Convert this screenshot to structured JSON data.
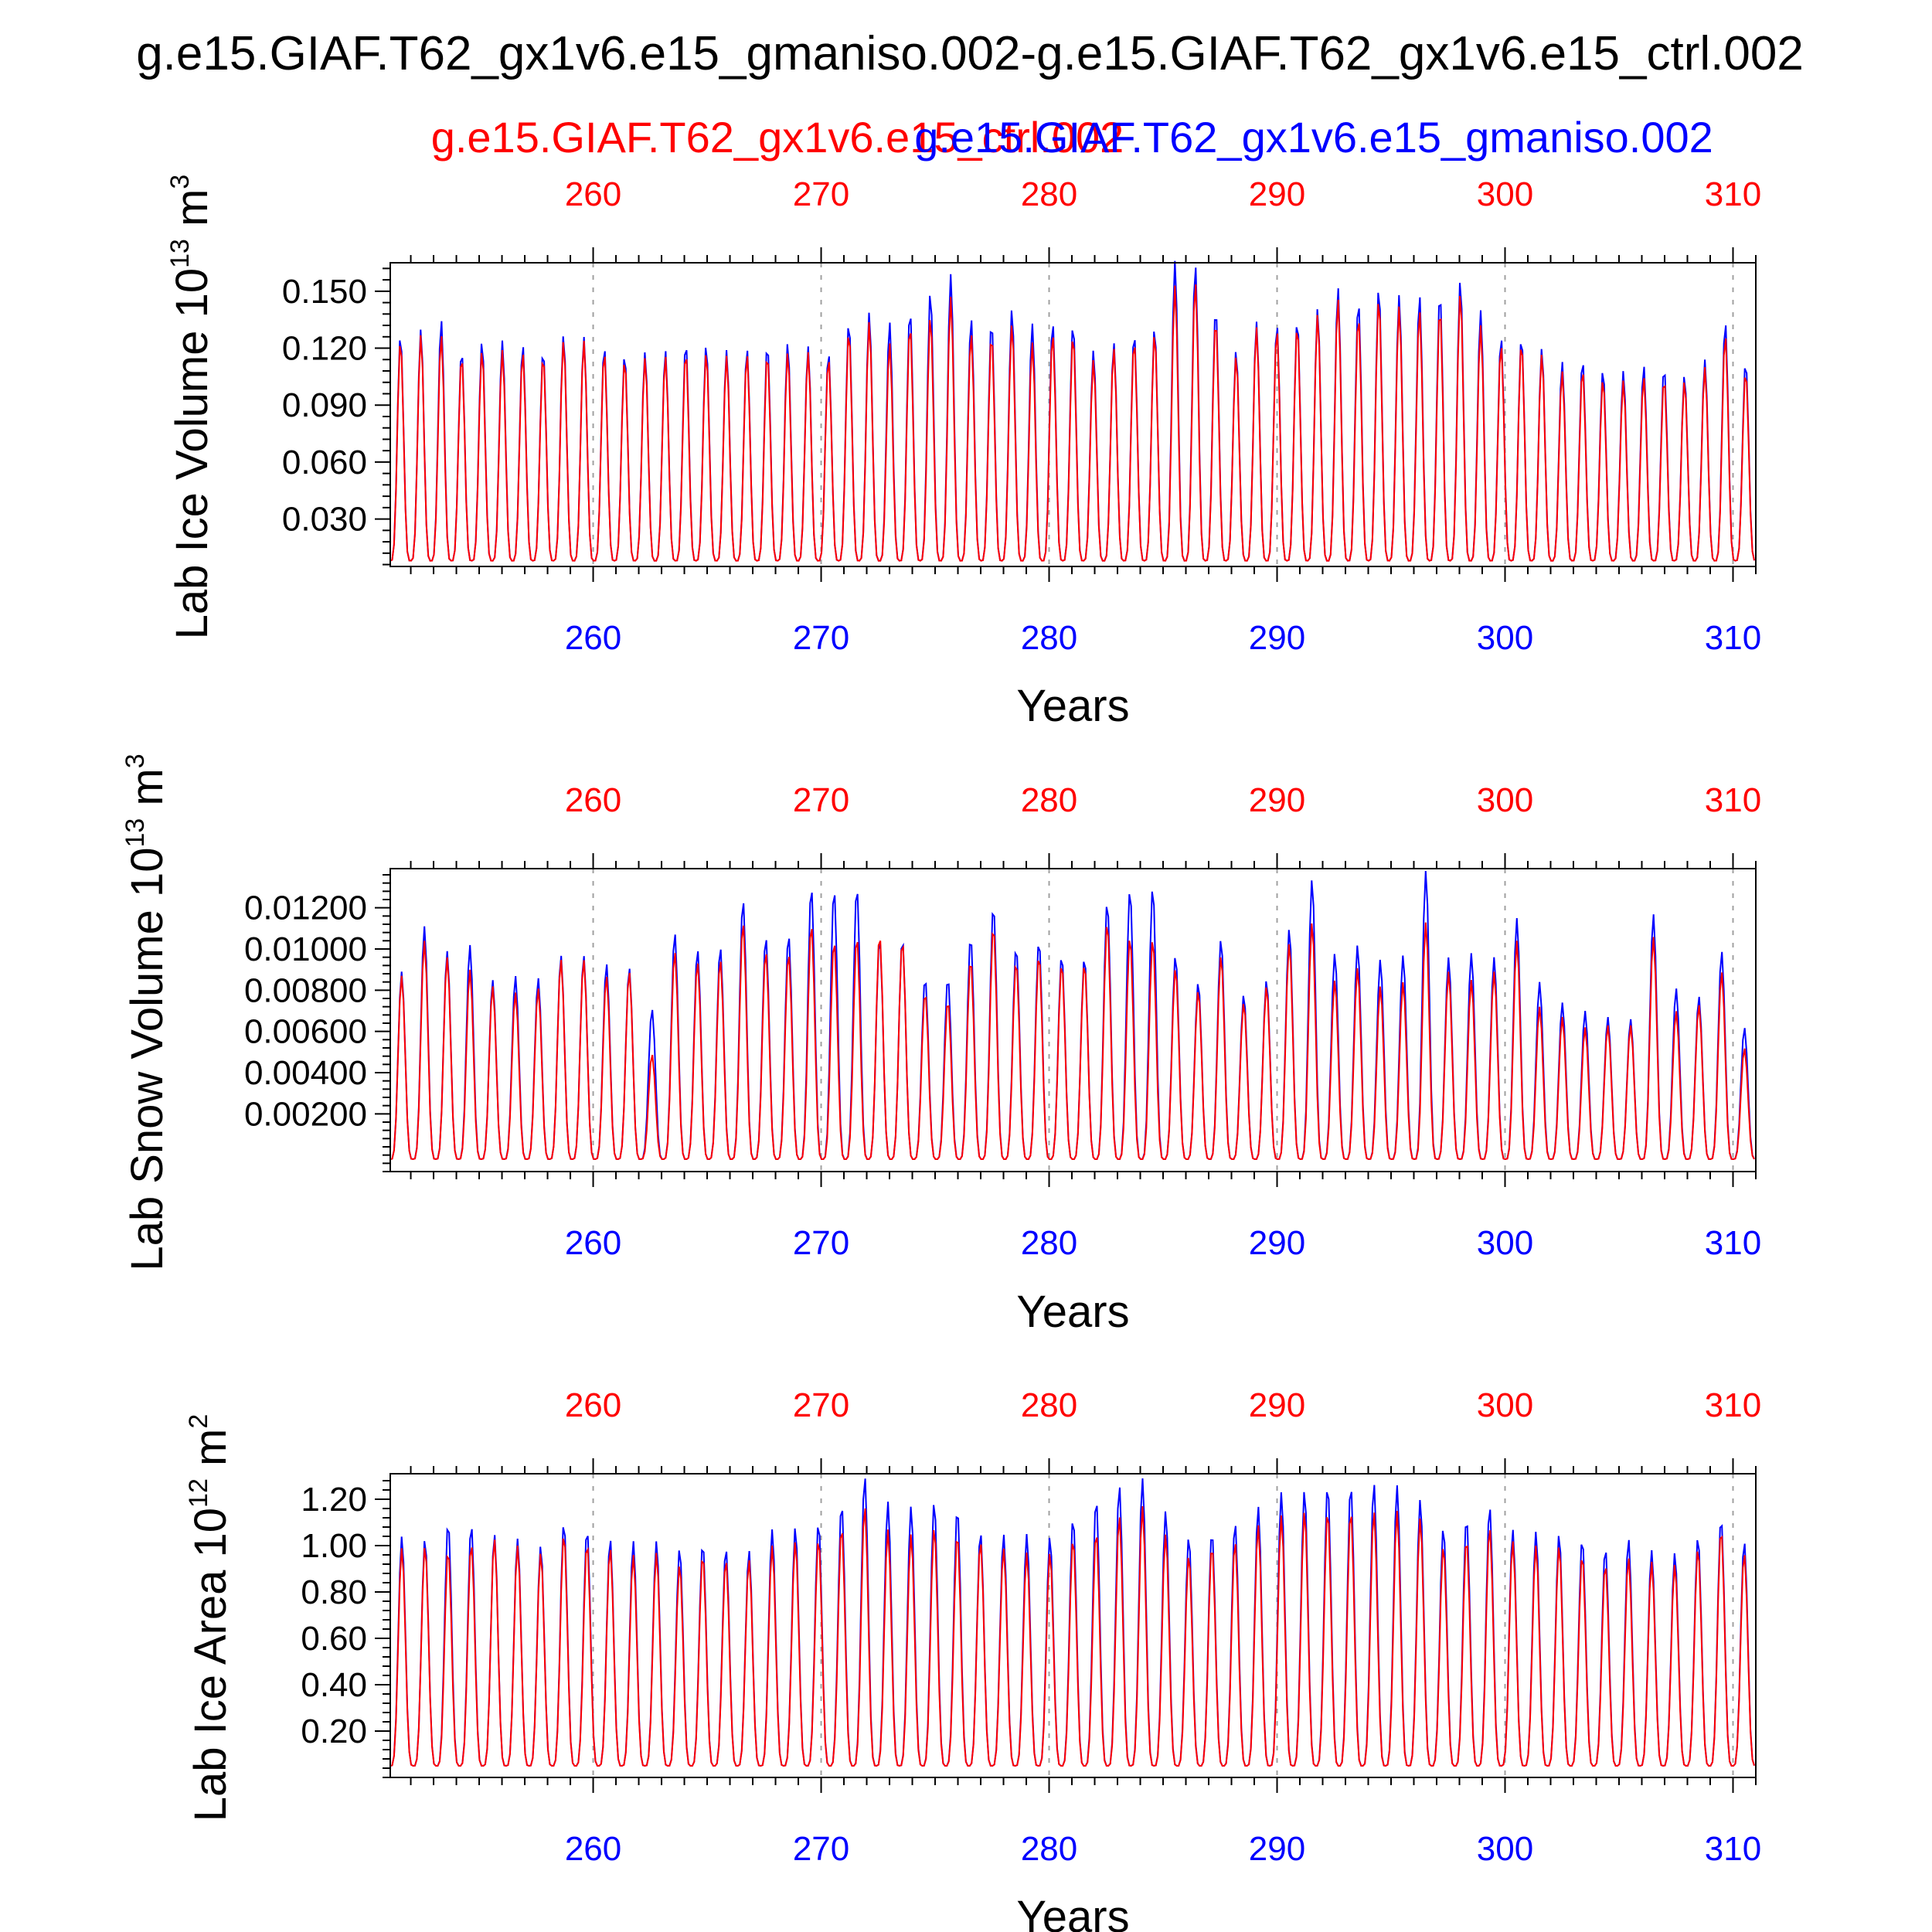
{
  "title": "g.e15.GIAF.T62_gx1v6.e15_gmaniso.002-g.e15.GIAF.T62_gx1v6.e15_ctrl.002",
  "legend": {
    "ctrl_label": "g.e15.GIAF.T62_gx1v6.e15_ctrl.002",
    "gmaniso_label": "g.e15.GIAF.T62_gx1v6.e15_gmaniso.002"
  },
  "colors": {
    "ctrl": "#ff0000",
    "gmaniso": "#0000ff",
    "axis": "#000000",
    "grid": "#a0a0a0"
  },
  "chart_data": [
    {
      "type": "line",
      "ylabel": "Lab Ice Volume",
      "yunit_base": "10",
      "yunit_exp": "13",
      "yunit_tail": "m",
      "yunit_tail_exp": "3",
      "xlabel": "Years",
      "xlim": [
        251.1,
        311.0
      ],
      "ylim": [
        0.005,
        0.165
      ],
      "xticks": [
        260,
        270,
        280,
        290,
        300,
        310
      ],
      "yticks": [
        0.03,
        0.06,
        0.09,
        0.12,
        0.15
      ],
      "ytick_labels": [
        "0.030",
        "0.060",
        "0.090",
        "0.120",
        "0.150"
      ],
      "series_shape": {
        "min": 0.008,
        "ctrl_peaks": [
          0.124,
          0.127,
          0.127,
          0.116,
          0.119,
          0.119,
          0.118,
          0.116,
          0.124,
          0.124,
          0.118,
          0.114,
          0.115,
          0.116,
          0.118,
          0.118,
          0.116,
          0.117,
          0.117,
          0.118,
          0.118,
          0.115,
          0.129,
          0.134,
          0.123,
          0.132,
          0.137,
          0.147,
          0.128,
          0.127,
          0.133,
          0.123,
          0.128,
          0.127,
          0.114,
          0.12,
          0.124,
          0.128,
          0.153,
          0.155,
          0.135,
          0.116,
          0.131,
          0.13,
          0.132,
          0.138,
          0.146,
          0.137,
          0.146,
          0.142,
          0.14,
          0.141,
          0.149,
          0.132,
          0.122,
          0.123,
          0.117,
          0.108,
          0.109,
          0.104,
          0.103,
          0.105,
          0.104,
          0.103,
          0.11,
          0.127,
          0.108
        ],
        "gmaniso_peaks": [
          0.127,
          0.13,
          0.135,
          0.119,
          0.124,
          0.124,
          0.122,
          0.119,
          0.127,
          0.126,
          0.121,
          0.117,
          0.118,
          0.119,
          0.123,
          0.122,
          0.119,
          0.12,
          0.122,
          0.123,
          0.121,
          0.118,
          0.134,
          0.139,
          0.134,
          0.14,
          0.15,
          0.159,
          0.136,
          0.134,
          0.141,
          0.133,
          0.134,
          0.133,
          0.119,
          0.123,
          0.128,
          0.131,
          0.166,
          0.164,
          0.141,
          0.119,
          0.134,
          0.133,
          0.135,
          0.141,
          0.152,
          0.145,
          0.152,
          0.148,
          0.148,
          0.149,
          0.156,
          0.14,
          0.126,
          0.126,
          0.12,
          0.113,
          0.114,
          0.109,
          0.108,
          0.111,
          0.11,
          0.106,
          0.114,
          0.134,
          0.113
        ]
      }
    },
    {
      "type": "line",
      "ylabel": "Lab Snow Volume",
      "yunit_base": "10",
      "yunit_exp": "13",
      "yunit_tail": "m",
      "yunit_tail_exp": "3",
      "xlabel": "Years",
      "xlim": [
        251.1,
        311.0
      ],
      "ylim": [
        -0.0008,
        0.0139
      ],
      "xticks": [
        260,
        270,
        280,
        290,
        300,
        310
      ],
      "yticks": [
        0.002,
        0.004,
        0.006,
        0.008,
        0.01,
        0.012
      ],
      "ytick_labels": [
        "0.00200",
        "0.00400",
        "0.00600",
        "0.00800",
        "0.01000",
        "0.01200"
      ],
      "series_shape": {
        "min": -0.0002,
        "ctrl_peaks": [
          0.0087,
          0.0104,
          0.0096,
          0.009,
          0.0082,
          0.0079,
          0.0081,
          0.0095,
          0.0095,
          0.0087,
          0.0089,
          0.0049,
          0.0099,
          0.0094,
          0.0095,
          0.0113,
          0.0099,
          0.0098,
          0.0112,
          0.0104,
          0.0106,
          0.0107,
          0.0104,
          0.0079,
          0.0075,
          0.0095,
          0.0111,
          0.0094,
          0.0097,
          0.0093,
          0.0093,
          0.0113,
          0.0106,
          0.0105,
          0.0091,
          0.008,
          0.0097,
          0.0074,
          0.0082,
          0.0103,
          0.0113,
          0.0085,
          0.0091,
          0.0082,
          0.0084,
          0.0113,
          0.0089,
          0.0085,
          0.0089,
          0.0104,
          0.0072,
          0.0067,
          0.0062,
          0.0063,
          0.0063,
          0.0106,
          0.007,
          0.0073,
          0.0089,
          0.0052
        ],
        "gmaniso_peaks": [
          0.0089,
          0.0111,
          0.0099,
          0.0102,
          0.0085,
          0.0087,
          0.0086,
          0.0097,
          0.0097,
          0.0093,
          0.0091,
          0.0071,
          0.0108,
          0.01,
          0.0101,
          0.0124,
          0.0106,
          0.0107,
          0.013,
          0.0129,
          0.013,
          0.0105,
          0.0105,
          0.0086,
          0.0086,
          0.0106,
          0.0121,
          0.0101,
          0.0104,
          0.0097,
          0.0096,
          0.0123,
          0.0129,
          0.013,
          0.0097,
          0.0084,
          0.0105,
          0.0078,
          0.0085,
          0.011,
          0.0134,
          0.0098,
          0.0102,
          0.0095,
          0.0097,
          0.0138,
          0.0096,
          0.0098,
          0.0096,
          0.0115,
          0.0084,
          0.0074,
          0.007,
          0.0067,
          0.0066,
          0.0117,
          0.0081,
          0.0077,
          0.0099,
          0.0062
        ]
      }
    },
    {
      "type": "line",
      "ylabel": "Lab Ice Area",
      "yunit_base": "10",
      "yunit_exp": "12",
      "yunit_tail": "m",
      "yunit_tail_exp": "2",
      "xlabel": "Years",
      "xlim": [
        251.1,
        311.0
      ],
      "ylim": [
        0.0,
        1.31
      ],
      "xticks": [
        260,
        270,
        280,
        290,
        300,
        310
      ],
      "yticks": [
        0.2,
        0.4,
        0.6,
        0.8,
        1.0,
        1.2
      ],
      "ytick_labels": [
        "0.20",
        "0.40",
        "0.60",
        "0.80",
        "1.00",
        "1.20"
      ],
      "series_shape": {
        "min": 0.05,
        "ctrl_peaks": [
          0.99,
          1.0,
          0.98,
          1.01,
          1.03,
          1.0,
          0.97,
          1.05,
          1.01,
          0.99,
          0.96,
          0.97,
          0.92,
          0.96,
          0.94,
          0.94,
          1.0,
          1.02,
          1.03,
          1.08,
          1.17,
          1.07,
          1.05,
          1.08,
          1.05,
          1.02,
          0.99,
          0.97,
          0.97,
          1.03,
          1.06,
          1.13,
          1.17,
          1.05,
          0.96,
          1.0,
          1.02,
          1.09,
          1.13,
          1.15,
          1.15,
          1.15,
          1.15,
          1.15,
          1.12,
          1.0,
          1.03,
          1.08,
          1.02,
          1.0,
          1.0,
          0.96,
          0.92,
          0.95,
          0.93,
          0.92,
          0.99,
          1.07,
          0.97
        ],
        "gmaniso_peaks": [
          1.04,
          1.03,
          1.1,
          1.09,
          1.05,
          1.03,
          1.0,
          1.1,
          1.07,
          1.03,
          1.02,
          1.02,
          0.99,
          1.01,
          0.99,
          0.98,
          1.07,
          1.08,
          1.1,
          1.18,
          1.3,
          1.19,
          1.17,
          1.19,
          1.16,
          1.06,
          1.05,
          1.05,
          1.04,
          1.12,
          1.2,
          1.26,
          1.29,
          1.15,
          1.04,
          1.06,
          1.1,
          1.17,
          1.23,
          1.24,
          1.26,
          1.26,
          1.27,
          1.26,
          1.2,
          1.08,
          1.12,
          1.17,
          1.07,
          1.06,
          1.05,
          1.03,
          0.99,
          1.03,
          0.98,
          0.97,
          1.04,
          1.12,
          1.02
        ]
      }
    }
  ]
}
